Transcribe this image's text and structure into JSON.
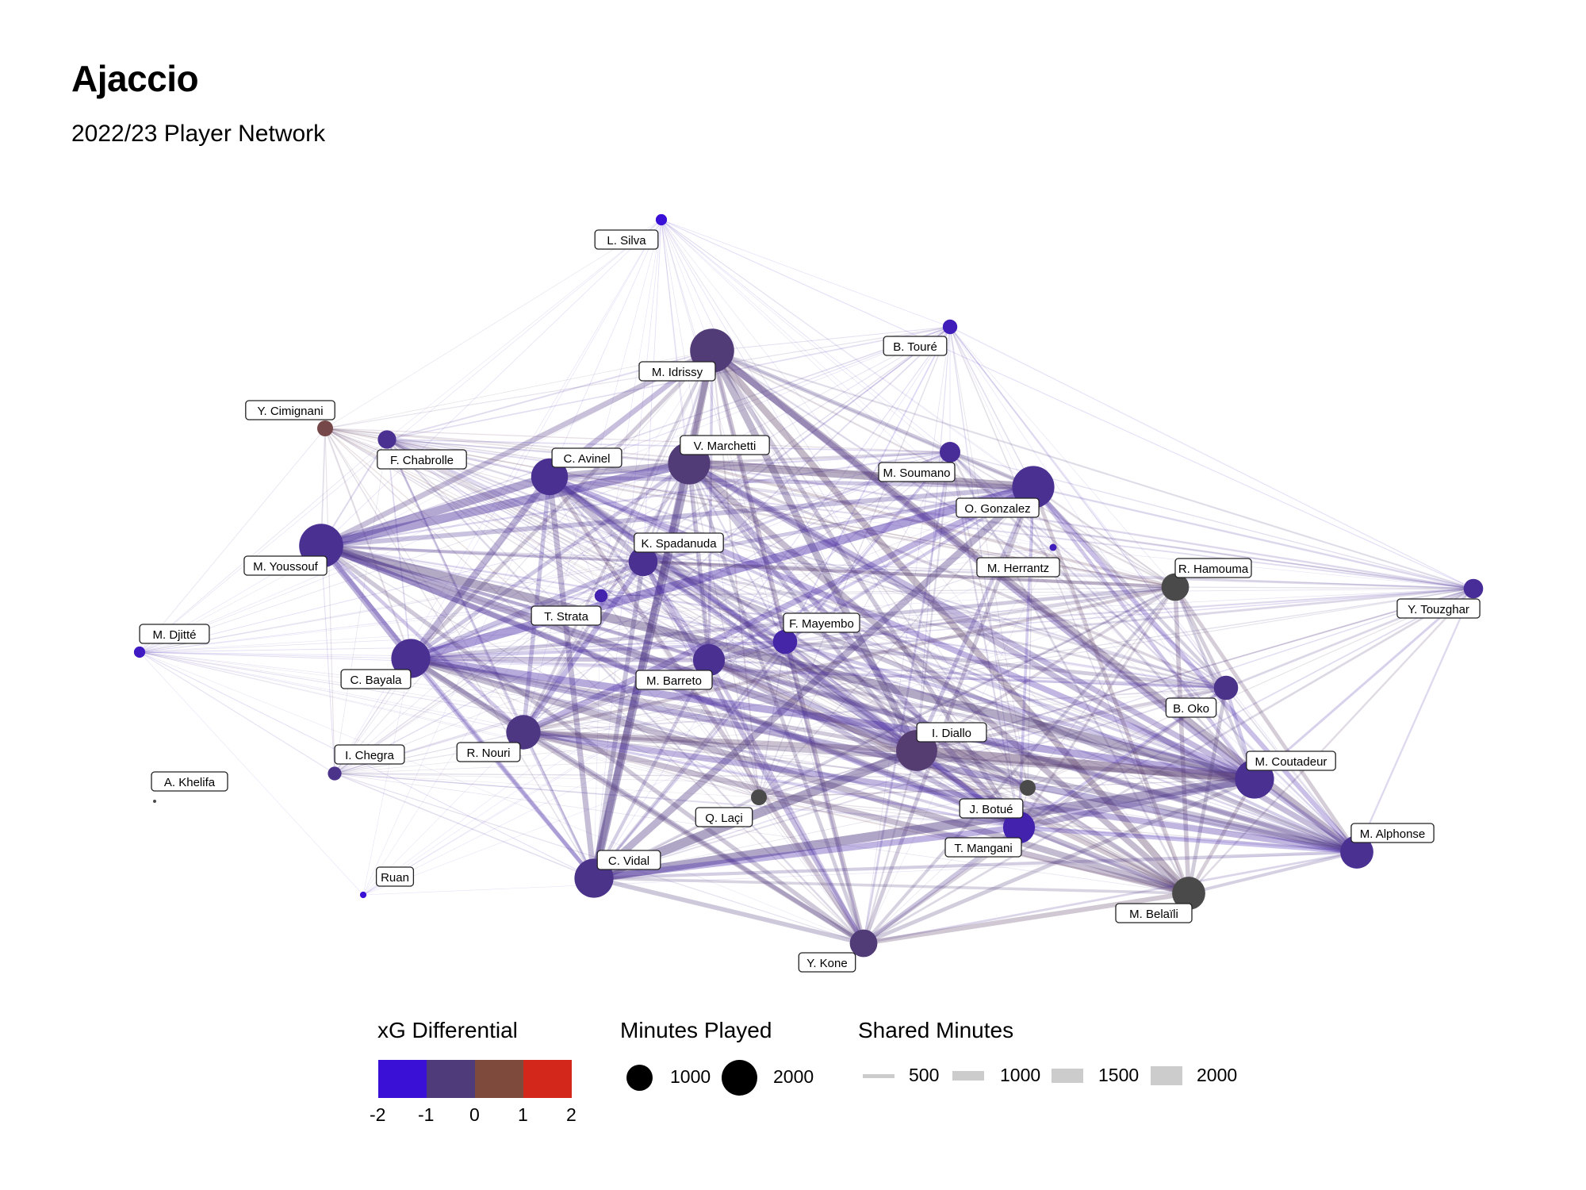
{
  "title": "Ajaccio",
  "subtitle": "2022/23 Player Network",
  "colors": {
    "low": "#3a0fd6",
    "mid_low": "#4f3b7a",
    "mid_high": "#7e4a3c",
    "high": "#d4271c",
    "neutral_node": "#4a4a4a"
  },
  "nodes": [
    {
      "label": "L. Silva",
      "xg": -2.0,
      "minutes": 150
    },
    {
      "label": "B. Touré",
      "xg": -1.6,
      "minutes": 250
    },
    {
      "label": "M. Idrissy",
      "xg": -0.6,
      "minutes": 2300
    },
    {
      "label": "Y. Cimignani",
      "xg": 0.4,
      "minutes": 300
    },
    {
      "label": "F. Chabrolle",
      "xg": -1.0,
      "minutes": 400
    },
    {
      "label": "C. Avinel",
      "xg": -1.0,
      "minutes": 1600
    },
    {
      "label": "V. Marchetti",
      "xg": -0.6,
      "minutes": 2100
    },
    {
      "label": "M. Soumano",
      "xg": -1.1,
      "minutes": 500
    },
    {
      "label": "O. Gonzalez",
      "xg": -1.0,
      "minutes": 2100
    },
    {
      "label": "K. Spadanuda",
      "xg": -1.0,
      "minutes": 1000
    },
    {
      "label": "M. Youssouf",
      "xg": -1.0,
      "minutes": 2300
    },
    {
      "label": "M. Herrantz",
      "xg": -1.6,
      "minutes": 60
    },
    {
      "label": "R. Hamouma",
      "xg": -0.1,
      "minutes": 900
    },
    {
      "label": "Y. Touzghar",
      "xg": -1.1,
      "minutes": 450
    },
    {
      "label": "M. Djitté",
      "xg": -1.7,
      "minutes": 150
    },
    {
      "label": "T. Strata",
      "xg": -1.4,
      "minutes": 200
    },
    {
      "label": "F. Mayembo",
      "xg": -1.3,
      "minutes": 700
    },
    {
      "label": "C. Bayala",
      "xg": -1.0,
      "minutes": 1800
    },
    {
      "label": "M. Barreto",
      "xg": -1.0,
      "minutes": 1200
    },
    {
      "label": "B. Oko",
      "xg": -0.9,
      "minutes": 700
    },
    {
      "label": "R. Nouri",
      "xg": -0.8,
      "minutes": 1400
    },
    {
      "label": "I. Diallo",
      "xg": -0.5,
      "minutes": 2000
    },
    {
      "label": "I. Chegra",
      "xg": -0.9,
      "minutes": 220
    },
    {
      "label": "A. Khelifa",
      "xg": 0.0,
      "minutes": 8
    },
    {
      "label": "M. Coutadeur",
      "xg": -1.0,
      "minutes": 1800
    },
    {
      "label": "Q. Laçi",
      "xg": 0.0,
      "minutes": 300
    },
    {
      "label": "J. Botué",
      "xg": -1.4,
      "minutes": 1200
    },
    {
      "label": "T. Mangani",
      "xg": 0.0,
      "minutes": 300
    },
    {
      "label": "M. Alphonse",
      "xg": -1.0,
      "minutes": 1300
    },
    {
      "label": "C. Vidal",
      "xg": -0.9,
      "minutes": 1800
    },
    {
      "label": "Ruan",
      "xg": -2.0,
      "minutes": 50
    },
    {
      "label": "M. Belaïli",
      "xg": 0.0,
      "minutes": 1300
    },
    {
      "label": "Y. Kone",
      "xg": -0.6,
      "minutes": 900
    }
  ],
  "legend": {
    "color_title": "xG Differential",
    "color_ticks": [
      "-2",
      "-1",
      "0",
      "1",
      "2"
    ],
    "size_title": "Minutes Played",
    "size_items": [
      {
        "value": 1000,
        "label": "1000"
      },
      {
        "value": 2000,
        "label": "2000"
      }
    ],
    "width_title": "Shared Minutes",
    "width_items": [
      {
        "value": 500,
        "label": "500"
      },
      {
        "value": 1000,
        "label": "1000"
      },
      {
        "value": 1500,
        "label": "1500"
      },
      {
        "value": 2000,
        "label": "2000"
      }
    ]
  }
}
